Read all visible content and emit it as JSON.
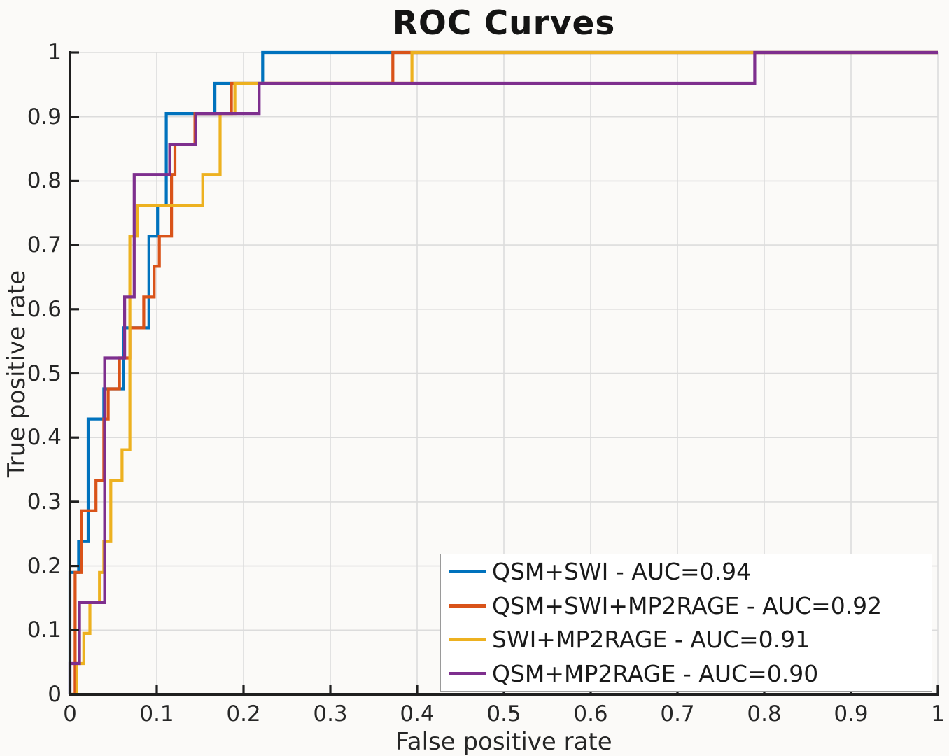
{
  "title": "ROC Curves",
  "x_axis": {
    "label": "False positive rate",
    "tick_labels": [
      "0",
      "0.1",
      "0.2",
      "0.3",
      "0.4",
      "0.5",
      "0.6",
      "0.7",
      "0.8",
      "0.9",
      "1"
    ],
    "range": [
      0,
      1
    ]
  },
  "y_axis": {
    "label": "True positive rate",
    "tick_labels": [
      "0",
      "0.1",
      "0.2",
      "0.3",
      "0.4",
      "0.5",
      "0.6",
      "0.7",
      "0.8",
      "0.9",
      "1"
    ],
    "range": [
      0,
      1
    ]
  },
  "colors": {
    "axis": "#1f1f1f",
    "grid": "#dcdcdc",
    "blue": "#0072BD",
    "orange": "#D95319",
    "yellow": "#EDB120",
    "purple": "#7E2F8E"
  },
  "chart_data": {
    "type": "line",
    "subtype": "roc-step-curves",
    "title": "ROC Curves",
    "xlabel": "False positive rate",
    "ylabel": "True positive rate",
    "xlim": [
      0,
      1
    ],
    "ylim": [
      0,
      1
    ],
    "grid": "on",
    "legend_position": "lower-right",
    "series": [
      {
        "name": "QSM+SWI",
        "auc": 0.94,
        "label": "QSM+SWI - AUC=0.94",
        "color": "#0072BD",
        "points": [
          [
            0,
            0
          ],
          [
            0,
            0.19
          ],
          [
            0.01,
            0.19
          ],
          [
            0.01,
            0.238
          ],
          [
            0.021,
            0.238
          ],
          [
            0.021,
            0.429
          ],
          [
            0.039,
            0.429
          ],
          [
            0.039,
            0.476
          ],
          [
            0.062,
            0.476
          ],
          [
            0.062,
            0.571
          ],
          [
            0.091,
            0.571
          ],
          [
            0.091,
            0.714
          ],
          [
            0.101,
            0.714
          ],
          [
            0.101,
            0.762
          ],
          [
            0.111,
            0.762
          ],
          [
            0.111,
            0.905
          ],
          [
            0.167,
            0.905
          ],
          [
            0.167,
            0.952
          ],
          [
            0.222,
            0.952
          ],
          [
            0.222,
            1
          ],
          [
            1,
            1
          ]
        ]
      },
      {
        "name": "QSM+SWI+MP2RAGE",
        "auc": 0.92,
        "label": "QSM+SWI+MP2RAGE - AUC=0.92",
        "color": "#D95319",
        "points": [
          [
            0,
            0
          ],
          [
            0.006,
            0
          ],
          [
            0.006,
            0.19
          ],
          [
            0.013,
            0.19
          ],
          [
            0.013,
            0.286
          ],
          [
            0.03,
            0.286
          ],
          [
            0.03,
            0.333
          ],
          [
            0.039,
            0.333
          ],
          [
            0.039,
            0.429
          ],
          [
            0.044,
            0.429
          ],
          [
            0.044,
            0.476
          ],
          [
            0.057,
            0.476
          ],
          [
            0.057,
            0.524
          ],
          [
            0.069,
            0.524
          ],
          [
            0.069,
            0.571
          ],
          [
            0.085,
            0.571
          ],
          [
            0.085,
            0.619
          ],
          [
            0.097,
            0.619
          ],
          [
            0.097,
            0.667
          ],
          [
            0.103,
            0.667
          ],
          [
            0.103,
            0.714
          ],
          [
            0.117,
            0.714
          ],
          [
            0.117,
            0.81
          ],
          [
            0.121,
            0.81
          ],
          [
            0.121,
            0.857
          ],
          [
            0.144,
            0.857
          ],
          [
            0.144,
            0.905
          ],
          [
            0.186,
            0.905
          ],
          [
            0.186,
            0.952
          ],
          [
            0.372,
            0.952
          ],
          [
            0.372,
            1
          ],
          [
            1,
            1
          ]
        ]
      },
      {
        "name": "SWI+MP2RAGE",
        "auc": 0.91,
        "label": "SWI+MP2RAGE - AUC=0.91",
        "color": "#EDB120",
        "points": [
          [
            0,
            0
          ],
          [
            0.008,
            0
          ],
          [
            0.008,
            0.048
          ],
          [
            0.016,
            0.048
          ],
          [
            0.016,
            0.095
          ],
          [
            0.023,
            0.095
          ],
          [
            0.023,
            0.143
          ],
          [
            0.034,
            0.143
          ],
          [
            0.034,
            0.19
          ],
          [
            0.039,
            0.19
          ],
          [
            0.039,
            0.238
          ],
          [
            0.047,
            0.238
          ],
          [
            0.047,
            0.333
          ],
          [
            0.06,
            0.333
          ],
          [
            0.06,
            0.381
          ],
          [
            0.069,
            0.381
          ],
          [
            0.069,
            0.714
          ],
          [
            0.078,
            0.714
          ],
          [
            0.078,
            0.762
          ],
          [
            0.153,
            0.762
          ],
          [
            0.153,
            0.81
          ],
          [
            0.173,
            0.81
          ],
          [
            0.173,
            0.905
          ],
          [
            0.19,
            0.905
          ],
          [
            0.19,
            0.952
          ],
          [
            0.394,
            0.952
          ],
          [
            0.394,
            1
          ],
          [
            1,
            1
          ]
        ]
      },
      {
        "name": "QSM+MP2RAGE",
        "auc": 0.9,
        "label": "QSM+MP2RAGE - AUC=0.90",
        "color": "#7E2F8E",
        "points": [
          [
            0,
            0
          ],
          [
            0,
            0.048
          ],
          [
            0.011,
            0.048
          ],
          [
            0.011,
            0.143
          ],
          [
            0.04,
            0.143
          ],
          [
            0.04,
            0.524
          ],
          [
            0.063,
            0.524
          ],
          [
            0.063,
            0.619
          ],
          [
            0.074,
            0.619
          ],
          [
            0.074,
            0.81
          ],
          [
            0.115,
            0.81
          ],
          [
            0.115,
            0.857
          ],
          [
            0.145,
            0.857
          ],
          [
            0.145,
            0.905
          ],
          [
            0.218,
            0.905
          ],
          [
            0.218,
            0.952
          ],
          [
            0.789,
            0.952
          ],
          [
            0.789,
            1
          ],
          [
            1,
            1
          ]
        ]
      }
    ]
  }
}
